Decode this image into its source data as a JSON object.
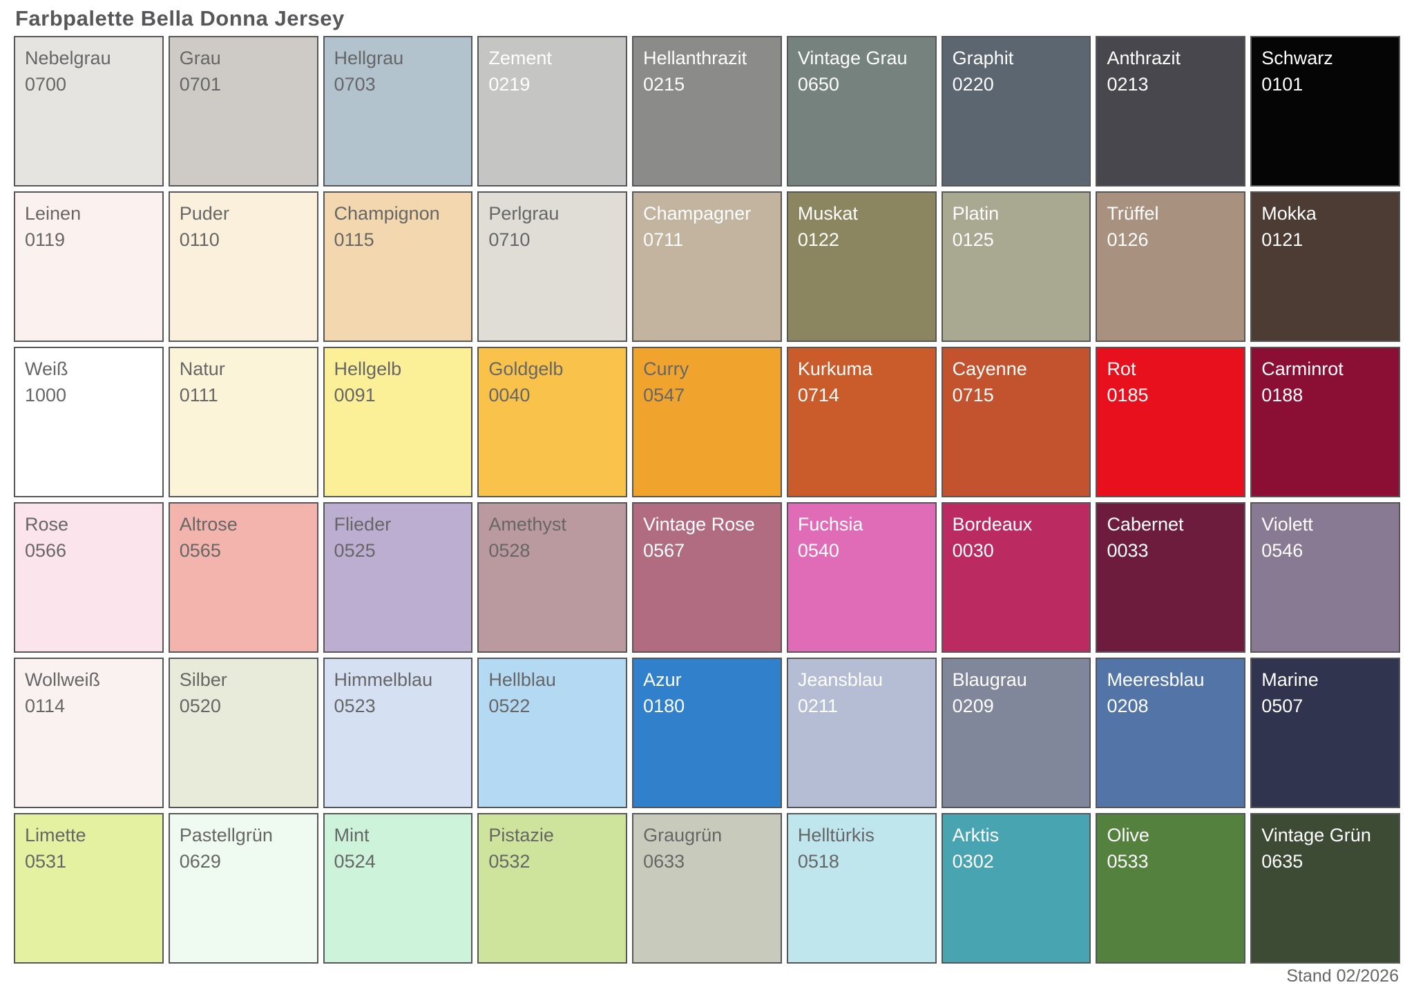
{
  "title": "Farbpalette Bella Donna Jersey",
  "footer": "Stand 02/2026",
  "palette": {
    "columns": 9,
    "rows": 6,
    "border_color": "#565659",
    "dark_text_color": "#666666",
    "light_text_color": "#ffffff",
    "swatches": [
      {
        "name": "Nebelgrau",
        "code": "0700",
        "color": "#e5e4e1",
        "text": "dark"
      },
      {
        "name": "Grau",
        "code": "0701",
        "color": "#cecbc7",
        "text": "dark"
      },
      {
        "name": "Hellgrau",
        "code": "0703",
        "color": "#b3c3ce",
        "text": "dark"
      },
      {
        "name": "Zement",
        "code": "0219",
        "color": "#c5c6c4",
        "text": "light"
      },
      {
        "name": "Hellanthrazit",
        "code": "0215",
        "color": "#8b8b89",
        "text": "light"
      },
      {
        "name": "Vintage Grau",
        "code": "0650",
        "color": "#75827e",
        "text": "light"
      },
      {
        "name": "Graphit",
        "code": "0220",
        "color": "#5b6671",
        "text": "light"
      },
      {
        "name": "Anthrazit",
        "code": "0213",
        "color": "#47474d",
        "text": "light"
      },
      {
        "name": "Schwarz",
        "code": "0101",
        "color": "#050506",
        "text": "light"
      },
      {
        "name": "Leinen",
        "code": "0119",
        "color": "#fbf1ee",
        "text": "dark"
      },
      {
        "name": "Puder",
        "code": "0110",
        "color": "#fbf0dc",
        "text": "dark"
      },
      {
        "name": "Champignon",
        "code": "0115",
        "color": "#f3d8af",
        "text": "dark"
      },
      {
        "name": "Perlgrau",
        "code": "0710",
        "color": "#dfddd6",
        "text": "dark"
      },
      {
        "name": "Champagner",
        "code": "0711",
        "color": "#c2b49e",
        "text": "light"
      },
      {
        "name": "Muskat",
        "code": "0122",
        "color": "#8c8660",
        "text": "light"
      },
      {
        "name": "Platin",
        "code": "0125",
        "color": "#a9a890",
        "text": "light"
      },
      {
        "name": "Trüffel",
        "code": "0126",
        "color": "#a8917f",
        "text": "light"
      },
      {
        "name": "Mokka",
        "code": "0121",
        "color": "#4d3c33",
        "text": "light"
      },
      {
        "name": "Weiß",
        "code": "1000",
        "color": "#ffffff",
        "text": "dark"
      },
      {
        "name": "Natur",
        "code": "0111",
        "color": "#fbf4d9",
        "text": "dark"
      },
      {
        "name": "Hellgelb",
        "code": "0091",
        "color": "#fbf098",
        "text": "dark"
      },
      {
        "name": "Goldgelb",
        "code": "0040",
        "color": "#f9c34b",
        "text": "dark"
      },
      {
        "name": "Curry",
        "code": "0547",
        "color": "#f0a42e",
        "text": "dark"
      },
      {
        "name": "Kurkuma",
        "code": "0714",
        "color": "#ca5b2b",
        "text": "light"
      },
      {
        "name": "Cayenne",
        "code": "0715",
        "color": "#c2532e",
        "text": "light"
      },
      {
        "name": "Rot",
        "code": "0185",
        "color": "#e8101d",
        "text": "light"
      },
      {
        "name": "Carminrot",
        "code": "0188",
        "color": "#8b0e34",
        "text": "light"
      },
      {
        "name": "Rose",
        "code": "0566",
        "color": "#fce4ec",
        "text": "dark"
      },
      {
        "name": "Altrose",
        "code": "0565",
        "color": "#f3b4ad",
        "text": "dark"
      },
      {
        "name": "Flieder",
        "code": "0525",
        "color": "#bcaed1",
        "text": "dark"
      },
      {
        "name": "Amethyst",
        "code": "0528",
        "color": "#bb9a9f",
        "text": "dark"
      },
      {
        "name": "Vintage Rose",
        "code": "0567",
        "color": "#b26c82",
        "text": "light"
      },
      {
        "name": "Fuchsia",
        "code": "0540",
        "color": "#e06cb7",
        "text": "light"
      },
      {
        "name": "Bordeaux",
        "code": "0030",
        "color": "#bc2a62",
        "text": "light"
      },
      {
        "name": "Cabernet",
        "code": "0033",
        "color": "#6d1c3d",
        "text": "light"
      },
      {
        "name": "Violett",
        "code": "0546",
        "color": "#887a92",
        "text": "light"
      },
      {
        "name": "Wollweiß",
        "code": "0114",
        "color": "#faf2f1",
        "text": "dark"
      },
      {
        "name": "Silber",
        "code": "0520",
        "color": "#e8ebda",
        "text": "dark"
      },
      {
        "name": "Himmelblau",
        "code": "0523",
        "color": "#d5e1f3",
        "text": "dark"
      },
      {
        "name": "Hellblau",
        "code": "0522",
        "color": "#b4daf3",
        "text": "dark"
      },
      {
        "name": "Azur",
        "code": "0180",
        "color": "#3080cc",
        "text": "light"
      },
      {
        "name": "Jeansblau",
        "code": "0211",
        "color": "#b4bdd4",
        "text": "light"
      },
      {
        "name": "Blaugrau",
        "code": "0209",
        "color": "#81879b",
        "text": "light"
      },
      {
        "name": "Meeresblau",
        "code": "0208",
        "color": "#5274a7",
        "text": "light"
      },
      {
        "name": "Marine",
        "code": "0507",
        "color": "#31344e",
        "text": "light"
      },
      {
        "name": "Limette",
        "code": "0531",
        "color": "#e4f1a1",
        "text": "dark"
      },
      {
        "name": "Pastellgrün",
        "code": "0629",
        "color": "#effbf1",
        "text": "dark"
      },
      {
        "name": "Mint",
        "code": "0524",
        "color": "#cdf3db",
        "text": "dark"
      },
      {
        "name": "Pistazie",
        "code": "0532",
        "color": "#cee49c",
        "text": "dark"
      },
      {
        "name": "Graugrün",
        "code": "0633",
        "color": "#c8cbbb",
        "text": "dark"
      },
      {
        "name": "Helltürkis",
        "code": "0518",
        "color": "#bfe5ed",
        "text": "dark"
      },
      {
        "name": "Arktis",
        "code": "0302",
        "color": "#48a4b1",
        "text": "light"
      },
      {
        "name": "Olive",
        "code": "0533",
        "color": "#55813f",
        "text": "light"
      },
      {
        "name": "Vintage Grün",
        "code": "0635",
        "color": "#3d4b35",
        "text": "light"
      }
    ]
  }
}
